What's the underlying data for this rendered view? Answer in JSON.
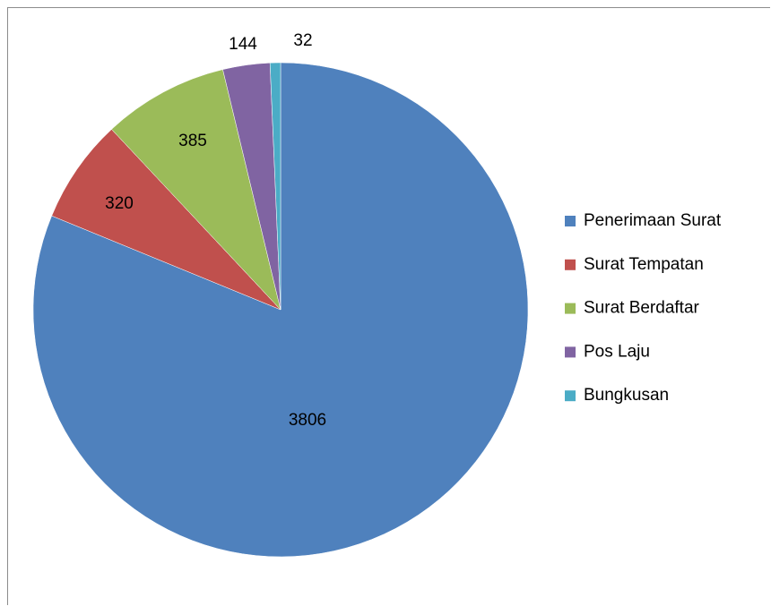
{
  "chart_data": {
    "type": "pie",
    "categories": [
      "Penerimaan Surat",
      "Surat Tempatan",
      "Surat Berdaftar",
      "Pos Laju",
      "Bungkusan"
    ],
    "values": [
      3806,
      320,
      385,
      144,
      32
    ],
    "colors": [
      "#4f81bd",
      "#c0504d",
      "#9bbb59",
      "#8064a2",
      "#4bacc6"
    ],
    "legend": "right"
  }
}
